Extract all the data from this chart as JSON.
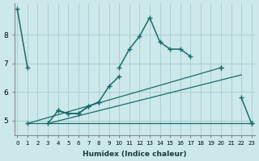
{
  "xlabel": "Humidex (Indice chaleur)",
  "background_color": "#cce8ea",
  "grid_color": "#a8d0d4",
  "line_color": "#1a6b6b",
  "x_values": [
    0,
    1,
    2,
    3,
    4,
    5,
    6,
    7,
    8,
    9,
    10,
    11,
    12,
    13,
    14,
    15,
    16,
    17,
    18,
    19,
    20,
    21,
    22,
    23
  ],
  "curve_top": [
    8.9,
    6.85,
    null,
    null,
    null,
    null,
    null,
    null,
    null,
    null,
    6.85,
    7.5,
    7.95,
    8.6,
    7.75,
    7.5,
    7.5,
    7.25,
    null,
    null,
    6.85,
    null,
    null,
    null
  ],
  "curve_mid": [
    null,
    null,
    null,
    null,
    5.35,
    5.25,
    5.25,
    5.5,
    5.65,
    6.2,
    6.55,
    null,
    null,
    null,
    null,
    null,
    null,
    null,
    null,
    null,
    6.85,
    null,
    5.8,
    4.9
  ],
  "curve_flat": [
    null,
    4.9,
    null,
    4.9,
    5.35,
    5.25,
    5.25,
    5.5,
    5.65,
    null,
    null,
    null,
    null,
    null,
    null,
    null,
    null,
    null,
    null,
    null,
    null,
    null,
    null,
    4.9
  ],
  "trend1_x": [
    1,
    20
  ],
  "trend1_y": [
    4.9,
    6.85
  ],
  "trend2_x": [
    3,
    22
  ],
  "trend2_y": [
    4.9,
    6.6
  ],
  "ylim": [
    4.5,
    9.1
  ],
  "xlim": [
    -0.3,
    23.3
  ],
  "yticks": [
    5,
    6,
    7,
    8
  ],
  "xticks": [
    0,
    1,
    2,
    3,
    4,
    5,
    6,
    7,
    8,
    9,
    10,
    11,
    12,
    13,
    14,
    15,
    16,
    17,
    18,
    19,
    20,
    21,
    22,
    23
  ]
}
